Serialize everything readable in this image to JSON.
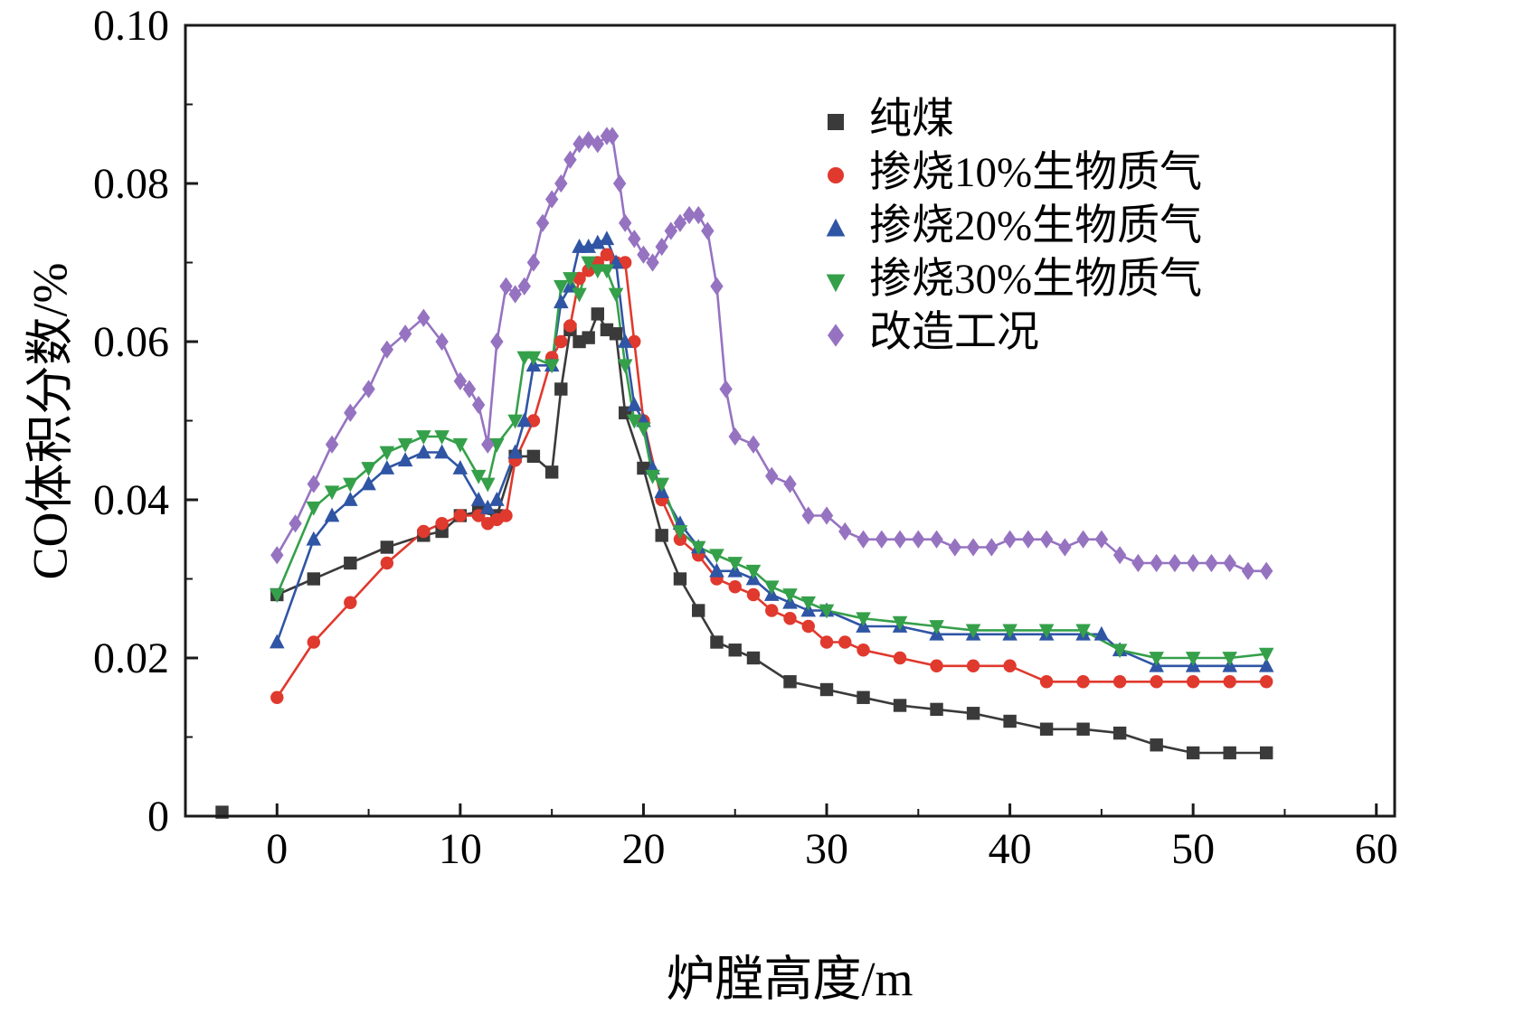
{
  "figure": {
    "xlabel": "炉膛高度/m",
    "ylabel": "CO体积分数/%"
  },
  "chart_data": {
    "type": "line",
    "title": "",
    "xlabel": "炉膛高度/m",
    "ylabel": "CO体积分数/%",
    "xlim": [
      -5,
      61
    ],
    "ylim": [
      0,
      0.1
    ],
    "xticks": [
      0,
      10,
      20,
      30,
      40,
      50,
      60
    ],
    "yticks": [
      0,
      0.02,
      0.04,
      0.06,
      0.08,
      0.1
    ],
    "ytick_labels": [
      "0",
      "0.02",
      "0.04",
      "0.06",
      "0.08",
      "0.10"
    ],
    "grid": false,
    "legend_position": "upper right",
    "frame_color": "#1a1a1a",
    "series": [
      {
        "name": "纯煤",
        "color": "#3a3a3a",
        "marker": "square",
        "isolated_points": [
          [
            -3,
            0.0005
          ]
        ],
        "points": [
          [
            0,
            0.028
          ],
          [
            2,
            0.03
          ],
          [
            4,
            0.032
          ],
          [
            6,
            0.034
          ],
          [
            8,
            0.0355
          ],
          [
            9,
            0.036
          ],
          [
            10,
            0.038
          ],
          [
            11,
            0.0385
          ],
          [
            12,
            0.038
          ],
          [
            13,
            0.0455
          ],
          [
            14,
            0.0455
          ],
          [
            15,
            0.0435
          ],
          [
            15.5,
            0.054
          ],
          [
            16,
            0.0615
          ],
          [
            16.5,
            0.06
          ],
          [
            17,
            0.0605
          ],
          [
            17.5,
            0.0635
          ],
          [
            18,
            0.0615
          ],
          [
            18.5,
            0.061
          ],
          [
            19,
            0.051
          ],
          [
            20,
            0.044
          ],
          [
            21,
            0.0355
          ],
          [
            22,
            0.03
          ],
          [
            23,
            0.026
          ],
          [
            24,
            0.022
          ],
          [
            25,
            0.021
          ],
          [
            26,
            0.02
          ],
          [
            28,
            0.017
          ],
          [
            30,
            0.016
          ],
          [
            32,
            0.015
          ],
          [
            34,
            0.014
          ],
          [
            36,
            0.0135
          ],
          [
            38,
            0.013
          ],
          [
            40,
            0.012
          ],
          [
            42,
            0.011
          ],
          [
            44,
            0.011
          ],
          [
            46,
            0.0105
          ],
          [
            48,
            0.009
          ],
          [
            50,
            0.008
          ],
          [
            52,
            0.008
          ],
          [
            54,
            0.008
          ]
        ]
      },
      {
        "name": "掺烧10%生物质气",
        "color": "#e0392e",
        "marker": "circle",
        "points": [
          [
            0,
            0.015
          ],
          [
            2,
            0.022
          ],
          [
            4,
            0.027
          ],
          [
            6,
            0.032
          ],
          [
            8,
            0.036
          ],
          [
            9,
            0.037
          ],
          [
            10,
            0.038
          ],
          [
            11,
            0.038
          ],
          [
            11.5,
            0.037
          ],
          [
            12,
            0.0375
          ],
          [
            12.5,
            0.038
          ],
          [
            13,
            0.045
          ],
          [
            14,
            0.05
          ],
          [
            15,
            0.058
          ],
          [
            15.5,
            0.06
          ],
          [
            16,
            0.062
          ],
          [
            16.5,
            0.068
          ],
          [
            17,
            0.069
          ],
          [
            17.5,
            0.07
          ],
          [
            18,
            0.071
          ],
          [
            18.5,
            0.07
          ],
          [
            19,
            0.07
          ],
          [
            19.5,
            0.06
          ],
          [
            20,
            0.05
          ],
          [
            21,
            0.04
          ],
          [
            22,
            0.035
          ],
          [
            23,
            0.033
          ],
          [
            24,
            0.03
          ],
          [
            25,
            0.029
          ],
          [
            26,
            0.028
          ],
          [
            27,
            0.026
          ],
          [
            28,
            0.025
          ],
          [
            29,
            0.024
          ],
          [
            30,
            0.022
          ],
          [
            31,
            0.022
          ],
          [
            32,
            0.021
          ],
          [
            34,
            0.02
          ],
          [
            36,
            0.019
          ],
          [
            38,
            0.019
          ],
          [
            40,
            0.019
          ],
          [
            42,
            0.017
          ],
          [
            44,
            0.017
          ],
          [
            46,
            0.017
          ],
          [
            48,
            0.017
          ],
          [
            50,
            0.017
          ],
          [
            52,
            0.017
          ],
          [
            54,
            0.017
          ]
        ]
      },
      {
        "name": "掺烧20%生物质气",
        "color": "#2f55a4",
        "marker": "triangle-up",
        "points": [
          [
            0,
            0.022
          ],
          [
            2,
            0.035
          ],
          [
            3,
            0.038
          ],
          [
            4,
            0.04
          ],
          [
            5,
            0.042
          ],
          [
            6,
            0.044
          ],
          [
            7,
            0.045
          ],
          [
            8,
            0.046
          ],
          [
            9,
            0.046
          ],
          [
            10,
            0.044
          ],
          [
            11,
            0.04
          ],
          [
            11.5,
            0.039
          ],
          [
            12,
            0.04
          ],
          [
            13,
            0.046
          ],
          [
            13.5,
            0.05
          ],
          [
            14,
            0.057
          ],
          [
            15,
            0.057
          ],
          [
            15.5,
            0.065
          ],
          [
            16,
            0.067
          ],
          [
            16.5,
            0.072
          ],
          [
            17,
            0.072
          ],
          [
            17.5,
            0.0725
          ],
          [
            18,
            0.073
          ],
          [
            18.5,
            0.07
          ],
          [
            19,
            0.06
          ],
          [
            19.5,
            0.052
          ],
          [
            20,
            0.05
          ],
          [
            20.5,
            0.044
          ],
          [
            21,
            0.041
          ],
          [
            22,
            0.037
          ],
          [
            23,
            0.034
          ],
          [
            24,
            0.031
          ],
          [
            25,
            0.031
          ],
          [
            26,
            0.03
          ],
          [
            27,
            0.028
          ],
          [
            28,
            0.027
          ],
          [
            29,
            0.026
          ],
          [
            30,
            0.026
          ],
          [
            32,
            0.024
          ],
          [
            34,
            0.024
          ],
          [
            36,
            0.023
          ],
          [
            38,
            0.023
          ],
          [
            40,
            0.023
          ],
          [
            42,
            0.023
          ],
          [
            44,
            0.023
          ],
          [
            45,
            0.023
          ],
          [
            46,
            0.021
          ],
          [
            48,
            0.019
          ],
          [
            50,
            0.019
          ],
          [
            52,
            0.019
          ],
          [
            54,
            0.019
          ]
        ]
      },
      {
        "name": "掺烧30%生物质气",
        "color": "#35a04a",
        "marker": "triangle-down",
        "points": [
          [
            0,
            0.028
          ],
          [
            2,
            0.039
          ],
          [
            3,
            0.041
          ],
          [
            4,
            0.042
          ],
          [
            5,
            0.044
          ],
          [
            6,
            0.046
          ],
          [
            7,
            0.047
          ],
          [
            8,
            0.048
          ],
          [
            9,
            0.048
          ],
          [
            10,
            0.047
          ],
          [
            11,
            0.043
          ],
          [
            11.5,
            0.042
          ],
          [
            12,
            0.047
          ],
          [
            13,
            0.05
          ],
          [
            13.5,
            0.058
          ],
          [
            14,
            0.058
          ],
          [
            15,
            0.057
          ],
          [
            15.5,
            0.067
          ],
          [
            16,
            0.068
          ],
          [
            16.5,
            0.066
          ],
          [
            17,
            0.07
          ],
          [
            17.5,
            0.069
          ],
          [
            18,
            0.069
          ],
          [
            18.5,
            0.066
          ],
          [
            19,
            0.057
          ],
          [
            19.5,
            0.05
          ],
          [
            20,
            0.049
          ],
          [
            20.5,
            0.043
          ],
          [
            21,
            0.042
          ],
          [
            22,
            0.036
          ],
          [
            23,
            0.034
          ],
          [
            24,
            0.033
          ],
          [
            25,
            0.032
          ],
          [
            26,
            0.031
          ],
          [
            27,
            0.029
          ],
          [
            28,
            0.028
          ],
          [
            29,
            0.027
          ],
          [
            30,
            0.026
          ],
          [
            32,
            0.025
          ],
          [
            34,
            0.0245
          ],
          [
            36,
            0.024
          ],
          [
            38,
            0.0235
          ],
          [
            40,
            0.0235
          ],
          [
            42,
            0.0235
          ],
          [
            44,
            0.0235
          ],
          [
            46,
            0.021
          ],
          [
            48,
            0.02
          ],
          [
            50,
            0.02
          ],
          [
            52,
            0.02
          ],
          [
            54,
            0.0205
          ]
        ]
      },
      {
        "name": "改造工况",
        "color": "#9673c1",
        "marker": "diamond",
        "points": [
          [
            0,
            0.033
          ],
          [
            1,
            0.037
          ],
          [
            2,
            0.042
          ],
          [
            3,
            0.047
          ],
          [
            4,
            0.051
          ],
          [
            5,
            0.054
          ],
          [
            6,
            0.059
          ],
          [
            7,
            0.061
          ],
          [
            8,
            0.063
          ],
          [
            9,
            0.06
          ],
          [
            10,
            0.055
          ],
          [
            10.5,
            0.054
          ],
          [
            11,
            0.052
          ],
          [
            11.5,
            0.047
          ],
          [
            12,
            0.06
          ],
          [
            12.5,
            0.067
          ],
          [
            13,
            0.066
          ],
          [
            13.5,
            0.067
          ],
          [
            14,
            0.07
          ],
          [
            14.5,
            0.075
          ],
          [
            15,
            0.078
          ],
          [
            15.5,
            0.08
          ],
          [
            16,
            0.083
          ],
          [
            16.5,
            0.085
          ],
          [
            17,
            0.0855
          ],
          [
            17.5,
            0.085
          ],
          [
            18,
            0.086
          ],
          [
            18.3,
            0.086
          ],
          [
            18.7,
            0.08
          ],
          [
            19,
            0.075
          ],
          [
            19.5,
            0.073
          ],
          [
            20,
            0.071
          ],
          [
            20.5,
            0.07
          ],
          [
            21,
            0.072
          ],
          [
            21.5,
            0.074
          ],
          [
            22,
            0.075
          ],
          [
            22.5,
            0.076
          ],
          [
            23,
            0.076
          ],
          [
            23.5,
            0.074
          ],
          [
            24,
            0.067
          ],
          [
            24.5,
            0.054
          ],
          [
            25,
            0.048
          ],
          [
            26,
            0.047
          ],
          [
            27,
            0.043
          ],
          [
            28,
            0.042
          ],
          [
            29,
            0.038
          ],
          [
            30,
            0.038
          ],
          [
            31,
            0.036
          ],
          [
            32,
            0.035
          ],
          [
            33,
            0.035
          ],
          [
            34,
            0.035
          ],
          [
            35,
            0.035
          ],
          [
            36,
            0.035
          ],
          [
            37,
            0.034
          ],
          [
            38,
            0.034
          ],
          [
            39,
            0.034
          ],
          [
            40,
            0.035
          ],
          [
            41,
            0.035
          ],
          [
            42,
            0.035
          ],
          [
            43,
            0.034
          ],
          [
            44,
            0.035
          ],
          [
            45,
            0.035
          ],
          [
            46,
            0.033
          ],
          [
            47,
            0.032
          ],
          [
            48,
            0.032
          ],
          [
            49,
            0.032
          ],
          [
            50,
            0.032
          ],
          [
            51,
            0.032
          ],
          [
            52,
            0.032
          ],
          [
            53,
            0.031
          ],
          [
            54,
            0.031
          ]
        ]
      }
    ]
  }
}
